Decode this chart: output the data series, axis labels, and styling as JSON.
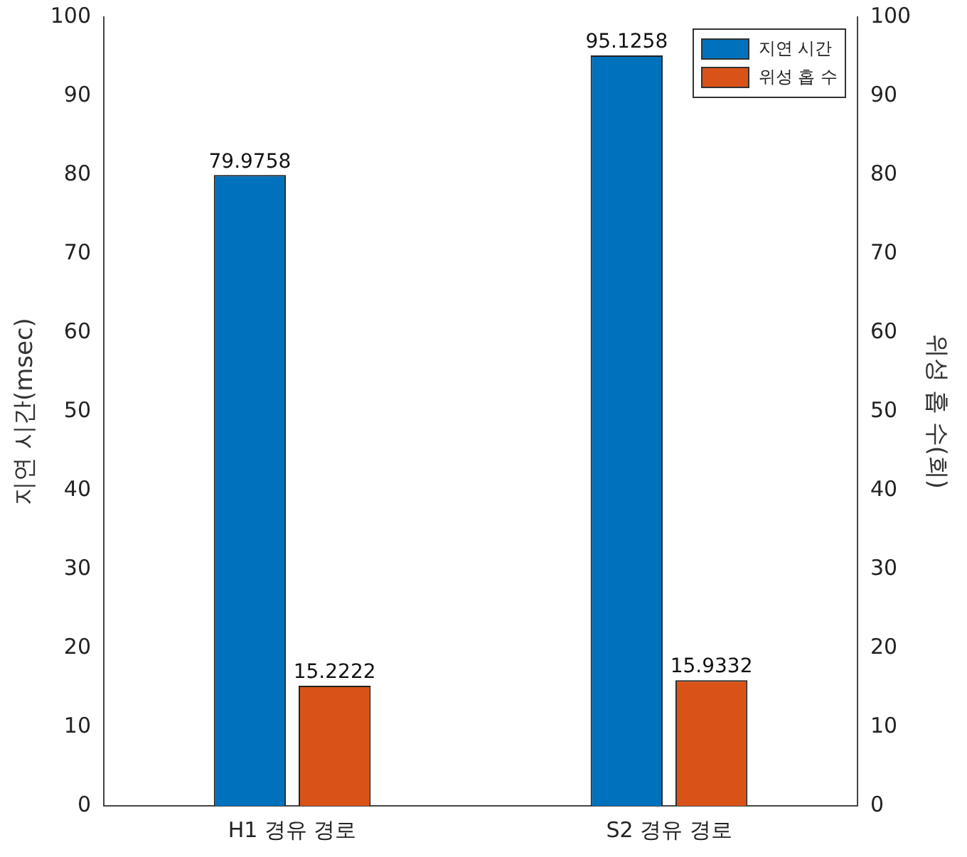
{
  "chart_data": {
    "type": "bar",
    "ylabel": "지연 시간(msec)",
    "y2label": "위성 홉 수(회)",
    "categories": [
      "H1 경유 경로",
      "S2 경유 경로"
    ],
    "series": [
      {
        "name": "지연 시간",
        "color": "#0072bd",
        "values": [
          79.9758,
          95.1258
        ]
      },
      {
        "name": "위성 홉 수",
        "color": "#d95319",
        "values": [
          15.2222,
          15.9332
        ],
        "axis": "y2"
      }
    ],
    "ylim": [
      0,
      100
    ],
    "yticks": [
      0,
      10,
      20,
      30,
      40,
      50,
      60,
      70,
      80,
      90,
      100
    ],
    "y2lim": [
      0,
      100
    ],
    "y2ticks": [
      0,
      10,
      20,
      30,
      40,
      50,
      60,
      70,
      80,
      90,
      100
    ],
    "data_labels": true,
    "legend": "top right",
    "grid": false
  }
}
